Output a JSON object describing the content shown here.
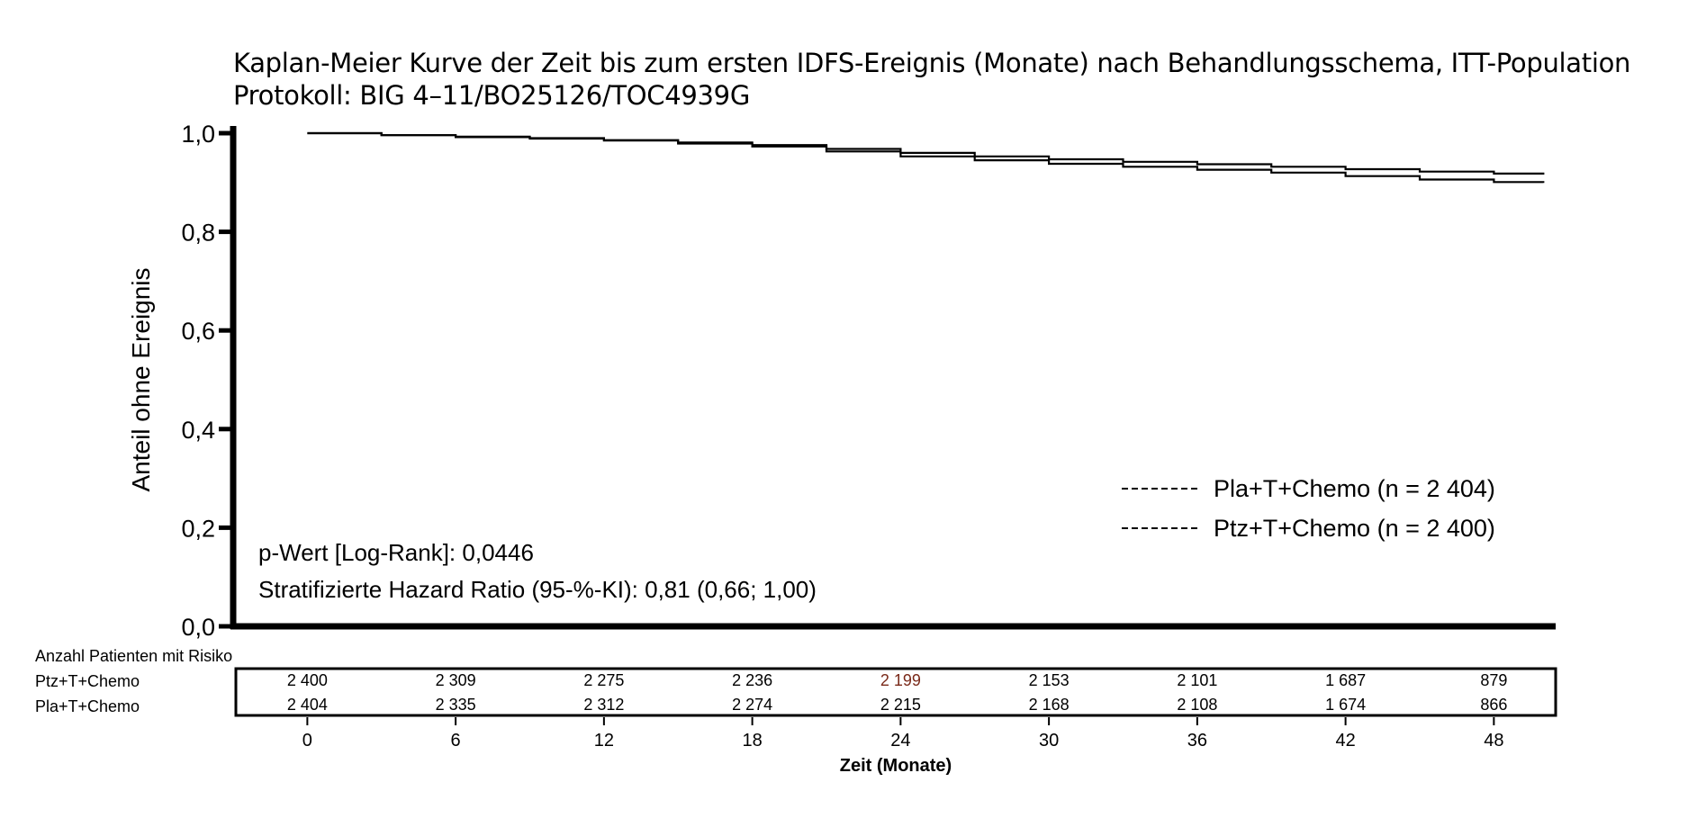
{
  "title": "Kaplan-Meier Kurve der Zeit bis zum ersten IDFS-Ereignis (Monate) nach Behandlungsschema, ITT-Population",
  "subtitle": "Protokoll: BIG 4–11/BO25126/TOC4939G",
  "chart_data": {
    "type": "line",
    "step": true,
    "title": "Kaplan-Meier Kurve der Zeit bis zum ersten IDFS-Ereignis (Monate) nach Behandlungsschema, ITT-Population",
    "subtitle": "Protokoll: BIG 4–11/BO25126/TOC4939G",
    "ylabel": "Anteil ohne Ereignis",
    "xlabel": "Zeit (Monate)",
    "xlim": [
      -3,
      50.5
    ],
    "ylim": [
      0,
      1.0
    ],
    "yticks": [
      0.0,
      0.2,
      0.4,
      0.6,
      0.8,
      1.0
    ],
    "ytick_labels": [
      "0,0",
      "0,2",
      "0,4",
      "0,6",
      "0,8",
      "1,0"
    ],
    "xticks": [
      0,
      6,
      12,
      18,
      24,
      30,
      36,
      42,
      48
    ],
    "xtick_labels": [
      "0",
      "6",
      "12",
      "18",
      "24",
      "30",
      "36",
      "42",
      "48"
    ],
    "grid": false,
    "legend_position": "bottom-right",
    "series": [
      {
        "name": "Pla+T+Chemo (n = 2 404)",
        "x": [
          0,
          3,
          6,
          9,
          12,
          15,
          18,
          21,
          24,
          27,
          30,
          33,
          36,
          39,
          42,
          45,
          48,
          50
        ],
        "y": [
          1.0,
          0.996,
          0.992,
          0.989,
          0.985,
          0.979,
          0.973,
          0.963,
          0.953,
          0.945,
          0.938,
          0.932,
          0.926,
          0.92,
          0.913,
          0.906,
          0.901,
          0.899
        ]
      },
      {
        "name": "Ptz+T+Chemo (n = 2 400)",
        "x": [
          0,
          3,
          6,
          9,
          12,
          15,
          18,
          21,
          24,
          27,
          30,
          33,
          36,
          39,
          42,
          45,
          48,
          50
        ],
        "y": [
          1.0,
          0.996,
          0.993,
          0.99,
          0.986,
          0.981,
          0.976,
          0.968,
          0.96,
          0.953,
          0.947,
          0.942,
          0.937,
          0.932,
          0.927,
          0.922,
          0.918,
          0.916
        ]
      }
    ],
    "annotations": [
      "p-Wert [Log-Rank]: 0,0446",
      "Stratifizierte Hazard Ratio (95-%-KI): 0,81 (0,66; 1,00)"
    ],
    "risk_table": {
      "header": "Anzahl Patienten mit Risiko",
      "rows": [
        {
          "label": "Ptz+T+Chemo",
          "values": [
            "2 400",
            "2 309",
            "2 275",
            "2 236",
            "2 199",
            "2 153",
            "2 101",
            "1 687",
            "879"
          ]
        },
        {
          "label": "Pla+T+Chemo",
          "values": [
            "2 404",
            "2 335",
            "2 312",
            "2 274",
            "2 215",
            "2 168",
            "2 108",
            "1 674",
            "866"
          ]
        }
      ]
    }
  }
}
